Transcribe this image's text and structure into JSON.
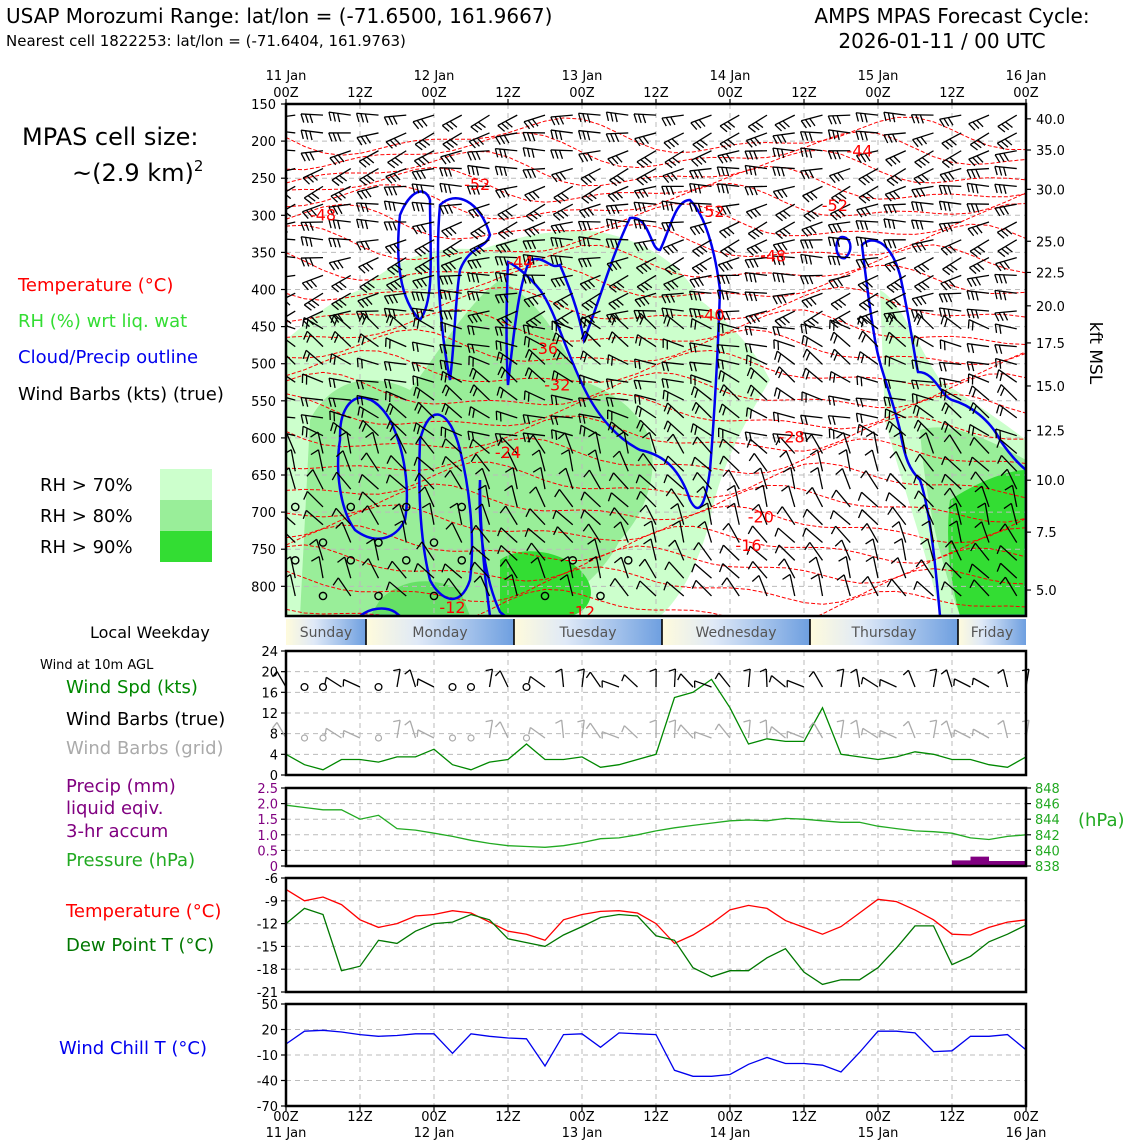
{
  "header": {
    "title_left": "USAP Morozumi Range: lat/lon = (-71.6500, 161.9667)",
    "subtitle_left": "Nearest cell 1822253: lat/lon = (-71.6404, 161.9763)",
    "title_right_1": "AMPS MPAS Forecast Cycle:",
    "title_right_2": "2026-01-11 / 00 UTC"
  },
  "cell_size": {
    "line1": "MPAS cell size:",
    "line2": "~(2.9 km)",
    "sup": "2"
  },
  "legend": {
    "temperature": "Temperature (°C)",
    "rh": "RH (%) wrt liq. wat",
    "cloud": "Cloud/Precip outline",
    "wind": "Wind Barbs (kts) (true)",
    "rh70": "RH > 70%",
    "rh80": "RH > 80%",
    "rh90": "RH > 90%"
  },
  "colors": {
    "temperature": "#ff0000",
    "rh_text": "#33dd33",
    "cloud": "#0000ee",
    "rh70": "#ccffcc",
    "rh80": "#99ee99",
    "rh90": "#33dd33",
    "wind_speed": "#008800",
    "precip": "#800080",
    "pressure": "#22aa22",
    "dewpoint": "#007700",
    "windchill": "#0000ee",
    "grid_barbs": "#aaaaaa"
  },
  "time_axis": {
    "top_ticks": [
      {
        "top": "11 Jan",
        "bottom": "00Z"
      },
      {
        "top": "",
        "bottom": "12Z"
      },
      {
        "top": "12 Jan",
        "bottom": "00Z"
      },
      {
        "top": "",
        "bottom": "12Z"
      },
      {
        "top": "13 Jan",
        "bottom": "00Z"
      },
      {
        "top": "",
        "bottom": "12Z"
      },
      {
        "top": "14 Jan",
        "bottom": "00Z"
      },
      {
        "top": "",
        "bottom": "12Z"
      },
      {
        "top": "15 Jan",
        "bottom": "00Z"
      },
      {
        "top": "",
        "bottom": "12Z"
      },
      {
        "top": "16 Jan",
        "bottom": "00Z"
      }
    ],
    "bottom_ticks": [
      {
        "hour": "00Z",
        "day": "11 Jan"
      },
      {
        "hour": "12Z",
        "day": ""
      },
      {
        "hour": "00Z",
        "day": "12 Jan"
      },
      {
        "hour": "12Z",
        "day": ""
      },
      {
        "hour": "00Z",
        "day": "13 Jan"
      },
      {
        "hour": "12Z",
        "day": ""
      },
      {
        "hour": "00Z",
        "day": "14 Jan"
      },
      {
        "hour": "12Z",
        "day": ""
      },
      {
        "hour": "00Z",
        "day": "15 Jan"
      },
      {
        "hour": "12Z",
        "day": ""
      },
      {
        "hour": "00Z",
        "day": "16 Jan"
      }
    ]
  },
  "weekday": {
    "label": "Local Weekday",
    "days": [
      "Sunday",
      "Monday",
      "Tuesday",
      "Wednesday",
      "Thursday",
      "Friday"
    ]
  },
  "sfc_labels": {
    "wind_10m": "Wind at 10m AGL",
    "wind_spd": "Wind Spd (kts)",
    "barbs_true": "Wind Barbs (true)",
    "barbs_grid": "Wind Barbs (grid)",
    "precip_1": "Precip (mm)",
    "precip_2": "liquid eqiv.",
    "precip_3": "3-hr accum",
    "pressure": "Pressure (hPa)",
    "hpa": "(hPa)",
    "temperature": "Temperature (°C)",
    "dewpoint": "Dew Point T (°C)",
    "windchill": "Wind Chill T (°C)"
  },
  "chart_data": [
    {
      "type": "heatmap",
      "name": "time-height cross section",
      "x_unit": "forecast hour",
      "xlim": [
        0,
        120
      ],
      "y_unit": "hPa",
      "ylim": [
        840,
        150
      ],
      "y_ticks": [
        150,
        200,
        250,
        300,
        350,
        400,
        450,
        500,
        550,
        600,
        650,
        700,
        750,
        800
      ],
      "right_axis": {
        "label": "kft MSL",
        "ticks": [
          {
            "label": "40.0",
            "p": 170
          },
          {
            "label": "35.0",
            "p": 212
          },
          {
            "label": "30.0",
            "p": 265
          },
          {
            "label": "25.0",
            "p": 335
          },
          {
            "label": "22.5",
            "p": 377
          },
          {
            "label": "20.0",
            "p": 422
          },
          {
            "label": "17.5",
            "p": 472
          },
          {
            "label": "15.0",
            "p": 530
          },
          {
            "label": "12.5",
            "p": 590
          },
          {
            "label": "10.0",
            "p": 657
          },
          {
            "label": "7.5",
            "p": 727
          },
          {
            "label": "5.0",
            "p": 805
          }
        ]
      },
      "temperature_labels": [
        {
          "text": "-44",
          "t": 93,
          "p": 213
        },
        {
          "text": "-52",
          "t": 31,
          "p": 258
        },
        {
          "text": "-52",
          "t": 69,
          "p": 294
        },
        {
          "text": "-52",
          "t": 89,
          "p": 286
        },
        {
          "text": "-48",
          "t": 6,
          "p": 299
        },
        {
          "text": "-48",
          "t": 79,
          "p": 354
        },
        {
          "text": "-44",
          "t": 38,
          "p": 362
        },
        {
          "text": "-40",
          "t": 69,
          "p": 434
        },
        {
          "text": "-36",
          "t": 42,
          "p": 479
        },
        {
          "text": "-32",
          "t": 44,
          "p": 528
        },
        {
          "text": "-28",
          "t": 82,
          "p": 598
        },
        {
          "text": "-24",
          "t": 36,
          "p": 619
        },
        {
          "text": "-20",
          "t": 77,
          "p": 706
        },
        {
          "text": "-16",
          "t": 75,
          "p": 744
        },
        {
          "text": "-12",
          "t": 27,
          "p": 828
        },
        {
          "text": "-12",
          "t": 48,
          "p": 834
        }
      ]
    },
    {
      "type": "line",
      "name": "10 m wind speed",
      "xlim": [
        0,
        120
      ],
      "ylim": [
        0,
        24
      ],
      "y_ticks": [
        0,
        4,
        8,
        12,
        16,
        20,
        24
      ],
      "x": [
        0,
        3,
        6,
        9,
        12,
        15,
        18,
        21,
        24,
        27,
        30,
        33,
        36,
        39,
        42,
        45,
        48,
        51,
        54,
        57,
        60,
        63,
        66,
        69,
        72,
        75,
        78,
        81,
        84,
        87,
        90,
        93,
        96,
        99,
        102,
        105,
        108,
        111,
        114,
        117,
        120
      ],
      "series": [
        {
          "values": [
            4.0,
            2.0,
            1.0,
            3.0,
            3.0,
            2.5,
            3.5,
            3.5,
            5.0,
            2.0,
            1.0,
            2.5,
            3.0,
            6.0,
            3.0,
            3.0,
            3.5,
            1.5,
            2.0,
            3.0,
            4.0,
            15.0,
            16.0,
            18.5,
            13.0,
            6.0,
            7.0,
            6.5,
            6.5,
            13.0,
            4.0,
            3.5,
            3.0,
            3.5,
            4.5,
            4.0,
            3.0,
            3.0,
            2.0,
            1.5,
            3.5
          ]
        }
      ]
    },
    {
      "type": "line",
      "name": "pressure and precipitation",
      "xlim": [
        0,
        120
      ],
      "pressure_ylim": [
        838,
        848
      ],
      "pressure_ticks": [
        838,
        840,
        842,
        844,
        846,
        848
      ],
      "precip_ylim": [
        0,
        2.5
      ],
      "precip_ticks": [
        "0",
        "0.5",
        "1.0",
        "1.5",
        "2.0",
        "2.5"
      ],
      "x": [
        0,
        3,
        6,
        9,
        12,
        15,
        18,
        21,
        24,
        27,
        30,
        33,
        36,
        39,
        42,
        45,
        48,
        51,
        54,
        57,
        60,
        63,
        66,
        69,
        72,
        75,
        78,
        81,
        84,
        87,
        90,
        93,
        96,
        99,
        102,
        105,
        108,
        111,
        114,
        117,
        120
      ],
      "series": [
        {
          "name": "Pressure (hPa)",
          "values": [
            845.8,
            845.5,
            845.2,
            845.2,
            844.0,
            844.5,
            842.8,
            842.6,
            842.2,
            841.8,
            841.3,
            840.9,
            840.6,
            840.5,
            840.4,
            840.6,
            841.0,
            841.5,
            841.6,
            842.0,
            842.5,
            842.9,
            843.2,
            843.5,
            843.8,
            843.9,
            843.8,
            844.1,
            844.0,
            843.8,
            843.6,
            843.6,
            843.1,
            842.8,
            842.5,
            842.4,
            842.2,
            841.6,
            841.4,
            841.8,
            842.0
          ]
        },
        {
          "name": "Precip (mm)",
          "bars": [
            {
              "x0": 108,
              "x1": 111,
              "value": 0.18
            },
            {
              "x0": 111,
              "x1": 114,
              "value": 0.3
            },
            {
              "x0": 114,
              "x1": 120,
              "value": 0.16
            }
          ]
        }
      ]
    },
    {
      "type": "line",
      "name": "temperature and dew point",
      "xlim": [
        0,
        120
      ],
      "ylim": [
        -21,
        -6
      ],
      "y_ticks": [
        -6,
        -9,
        -12,
        -15,
        -18,
        -21
      ],
      "x": [
        0,
        3,
        6,
        9,
        12,
        15,
        18,
        21,
        24,
        27,
        30,
        33,
        36,
        39,
        42,
        45,
        48,
        51,
        54,
        57,
        60,
        63,
        66,
        69,
        72,
        75,
        78,
        81,
        84,
        87,
        90,
        93,
        96,
        99,
        102,
        105,
        108,
        111,
        114,
        117,
        120
      ],
      "series": [
        {
          "name": "Temperature (°C)",
          "values": [
            -7.5,
            -9.0,
            -8.5,
            -9.5,
            -11.5,
            -12.5,
            -12.0,
            -11.0,
            -10.8,
            -10.3,
            -10.6,
            -11.8,
            -13.0,
            -13.4,
            -14.2,
            -11.5,
            -10.8,
            -10.4,
            -10.3,
            -10.6,
            -12.0,
            -14.6,
            -13.5,
            -12.0,
            -10.2,
            -9.6,
            -10.0,
            -11.6,
            -12.5,
            -13.4,
            -12.4,
            -10.6,
            -8.8,
            -9.1,
            -10.2,
            -11.5,
            -13.4,
            -13.5,
            -12.5,
            -11.8,
            -11.5
          ]
        },
        {
          "name": "Dew Point T (°C)",
          "values": [
            -12.0,
            -10.0,
            -10.8,
            -18.2,
            -17.6,
            -14.2,
            -14.6,
            -13.0,
            -12.0,
            -11.8,
            -10.8,
            -11.5,
            -14.0,
            -14.5,
            -15.0,
            -13.5,
            -12.4,
            -11.2,
            -10.8,
            -11.0,
            -13.6,
            -14.2,
            -17.8,
            -19.0,
            -18.2,
            -18.2,
            -16.5,
            -15.3,
            -18.4,
            -20.0,
            -19.4,
            -19.4,
            -17.8,
            -15.2,
            -12.3,
            -12.3,
            -17.4,
            -16.3,
            -14.4,
            -13.4,
            -12.2
          ]
        }
      ]
    },
    {
      "type": "line",
      "name": "wind chill",
      "xlim": [
        0,
        120
      ],
      "ylim": [
        -70,
        50
      ],
      "y_ticks": [
        50,
        20,
        -10,
        -40,
        -70
      ],
      "x": [
        0,
        3,
        6,
        9,
        12,
        15,
        18,
        21,
        24,
        27,
        30,
        33,
        36,
        39,
        42,
        45,
        48,
        51,
        54,
        57,
        60,
        63,
        66,
        69,
        72,
        75,
        78,
        81,
        84,
        87,
        90,
        93,
        96,
        99,
        102,
        105,
        108,
        111,
        114,
        117,
        120
      ],
      "series": [
        {
          "values": [
            3,
            18,
            19,
            17,
            14,
            12,
            13,
            15,
            15,
            -8,
            15,
            12,
            10,
            9,
            -23,
            14,
            15,
            -1,
            16,
            15,
            14,
            -28,
            -35,
            -35,
            -33,
            -21,
            -13,
            -20,
            -20,
            -22,
            -30,
            -7,
            18,
            18,
            16,
            -6,
            -5,
            12,
            12,
            14,
            -4
          ]
        }
      ]
    }
  ]
}
